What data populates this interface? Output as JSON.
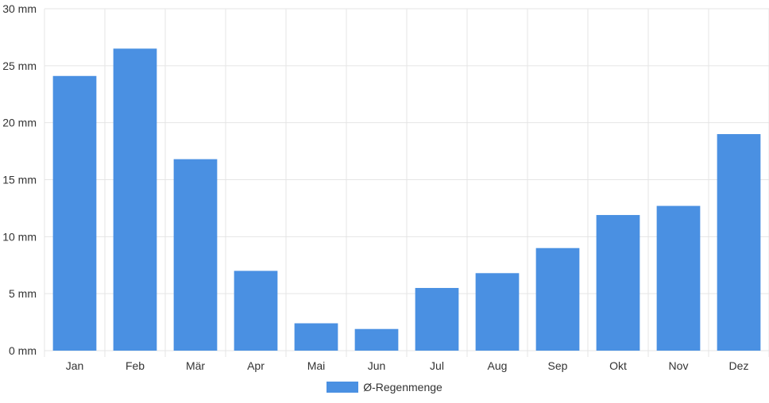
{
  "chart_data": {
    "type": "bar",
    "categories": [
      "Jan",
      "Feb",
      "Mär",
      "Apr",
      "Mai",
      "Jun",
      "Jul",
      "Aug",
      "Sep",
      "Okt",
      "Nov",
      "Dez"
    ],
    "series": [
      {
        "name": "Ø-Regenmenge",
        "values": [
          24.1,
          26.5,
          16.8,
          7.0,
          2.4,
          1.9,
          5.5,
          6.8,
          9.0,
          11.9,
          12.7,
          19.0
        ]
      }
    ],
    "yticks": [
      "0 mm",
      "5 mm",
      "10 mm",
      "15 mm",
      "20 mm",
      "25 mm",
      "30 mm"
    ],
    "ylim": [
      0,
      30
    ],
    "grid": true,
    "legend_position": "bottom",
    "bar_color": "#4a90e2",
    "grid_color": "#e5e5e5"
  }
}
